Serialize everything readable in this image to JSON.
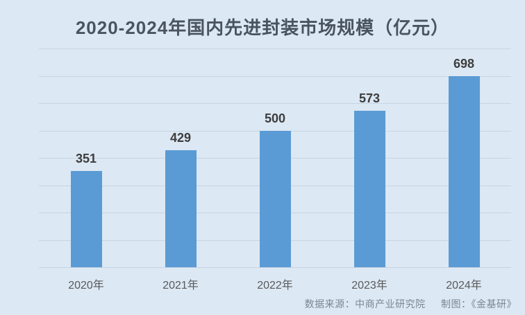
{
  "chart_data": {
    "type": "bar",
    "title": "2020-2024年国内先进封装市场规模（亿元）",
    "categories": [
      "2020年",
      "2021年",
      "2022年",
      "2023年",
      "2024年"
    ],
    "values": [
      351,
      429,
      500,
      573,
      698
    ],
    "xlabel": "",
    "ylabel": "",
    "ylim": [
      0,
      800
    ],
    "ytick_step": 100,
    "grid": true,
    "legend": "none",
    "colors": {
      "background": "#dce8f4",
      "bar": "#5b9bd5",
      "gridline": "#c7d4e2",
      "title_text": "#4a5460",
      "axis_text": "#595959",
      "value_label_text": "#3d3d3d",
      "footer_text": "#7a8795"
    }
  },
  "footer": {
    "data_source": "数据来源：中商产业研究院",
    "credit": "制图：《金基研》"
  }
}
